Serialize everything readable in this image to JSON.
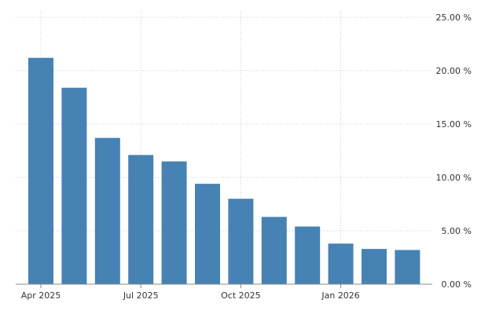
{
  "chart_data": {
    "type": "bar",
    "title": "",
    "xlabel": "",
    "ylabel": "",
    "categories": [
      "2025-04",
      "2025-05",
      "2025-06",
      "2025-07",
      "2025-08",
      "2025-09",
      "2025-10",
      "2025-11",
      "2025-12",
      "2026-01",
      "2026-02",
      "2026-03"
    ],
    "values": [
      21.2,
      18.4,
      13.7,
      12.1,
      11.5,
      9.4,
      8.0,
      6.3,
      5.4,
      3.8,
      3.3,
      3.2
    ],
    "ylim": [
      0,
      25
    ],
    "y_ticks": [
      "0.00 %",
      "5.00 %",
      "10.00 %",
      "15.00 %",
      "20.00 %",
      "25.00 %"
    ],
    "x_ticks": [
      {
        "label": "Apr 2025",
        "category": "2025-04"
      },
      {
        "label": "Jul 2025",
        "category": "2025-07"
      },
      {
        "label": "Oct 2025",
        "category": "2025-10"
      },
      {
        "label": "Jan 2026",
        "category": "2026-01"
      }
    ],
    "grid": true,
    "y_axis_side": "right",
    "bar_color": "#4682b4",
    "grid_color": "#cccccc"
  }
}
